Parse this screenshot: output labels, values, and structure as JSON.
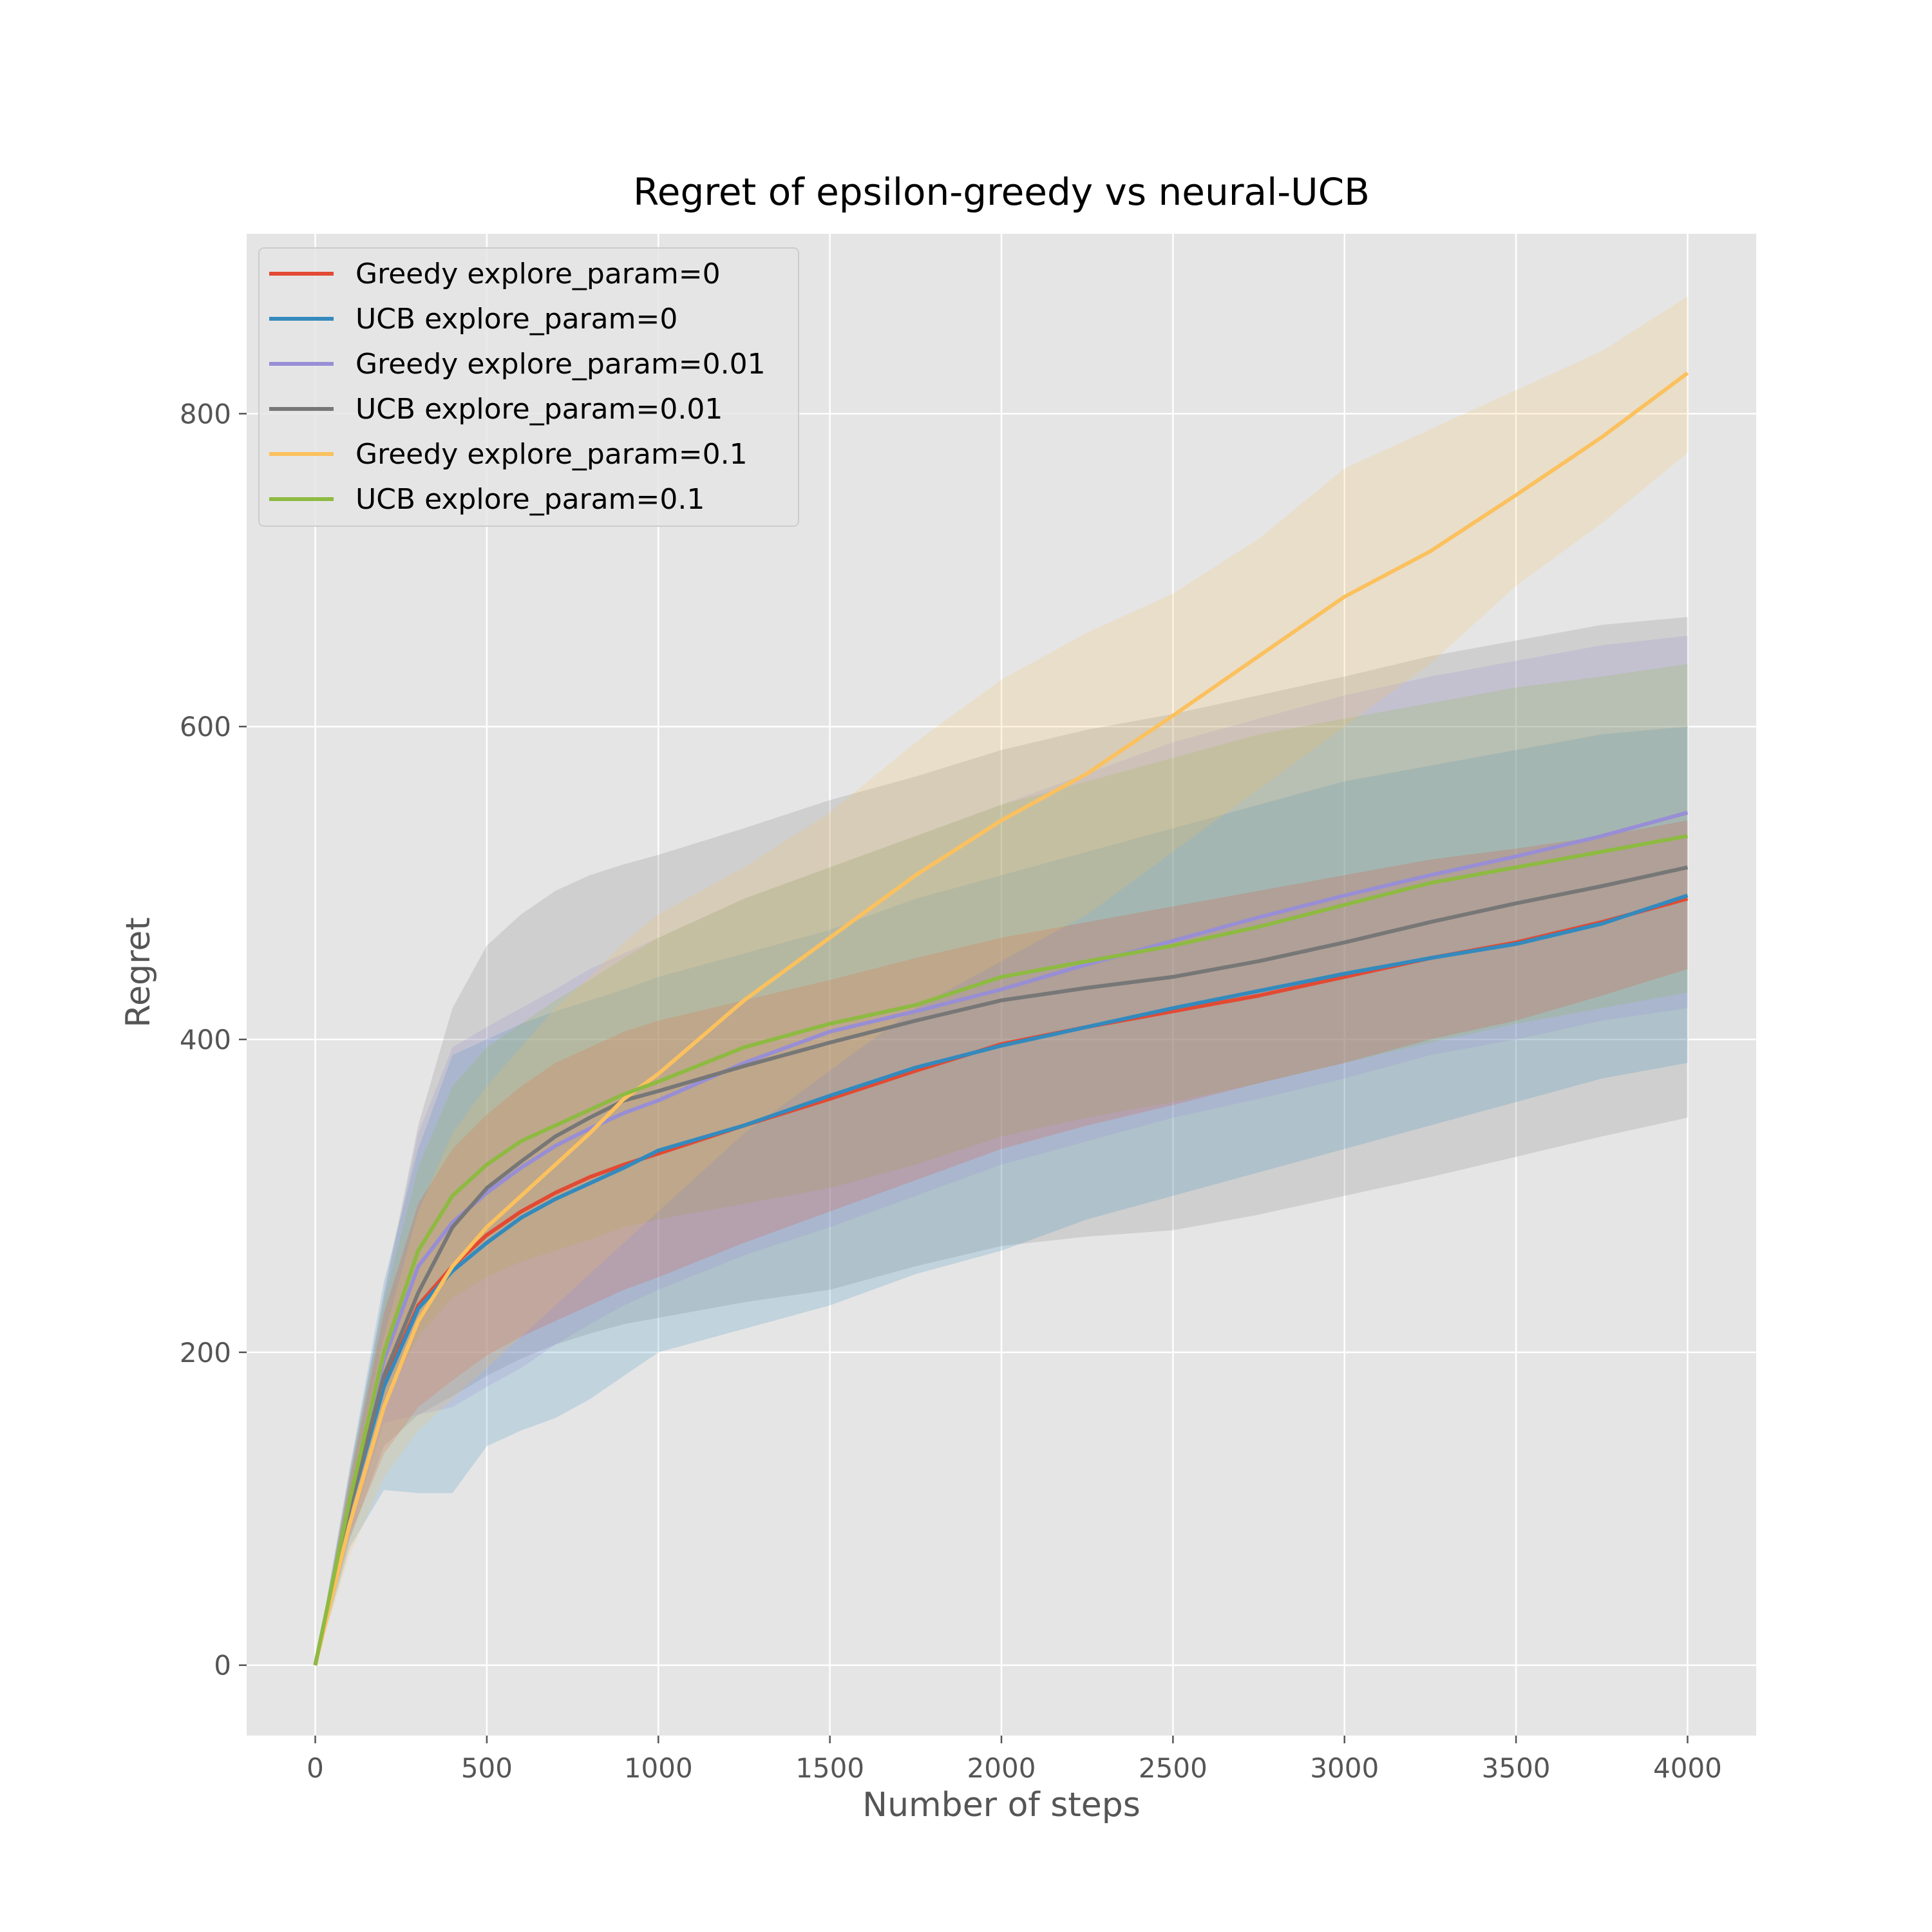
{
  "chart_data": {
    "type": "line",
    "title": "Regret of epsilon-greedy vs neural-UCB",
    "xlabel": "Number of steps",
    "ylabel": "Regret",
    "xlim": [
      -200,
      4200
    ],
    "ylim": [
      -45,
      915
    ],
    "xticks": [
      0,
      500,
      1000,
      1500,
      2000,
      2500,
      3000,
      3500,
      4000
    ],
    "yticks": [
      0,
      200,
      400,
      600,
      800
    ],
    "grid": true,
    "legend_position": "top-left",
    "x": [
      0,
      100,
      200,
      300,
      400,
      500,
      600,
      700,
      800,
      900,
      1000,
      1250,
      1500,
      1750,
      2000,
      2250,
      2500,
      2750,
      3000,
      3250,
      3500,
      3750,
      4000
    ],
    "series": [
      {
        "name": "Greedy explore_param=0",
        "color": "#E24A33",
        "mean": [
          0,
          100,
          180,
          230,
          255,
          275,
          290,
          302,
          312,
          320,
          327,
          345,
          362,
          380,
          397,
          408,
          418,
          428,
          440,
          452,
          462,
          475,
          490
        ],
        "lower": [
          0,
          82,
          135,
          165,
          182,
          198,
          210,
          220,
          230,
          240,
          248,
          270,
          290,
          310,
          330,
          345,
          358,
          372,
          385,
          400,
          412,
          428,
          445
        ],
        "upper": [
          0,
          118,
          225,
          295,
          330,
          352,
          370,
          385,
          395,
          405,
          412,
          425,
          438,
          452,
          465,
          475,
          485,
          495,
          505,
          515,
          522,
          530,
          540
        ]
      },
      {
        "name": "UCB explore_param=0",
        "color": "#348ABD",
        "mean": [
          0,
          100,
          178,
          228,
          252,
          270,
          286,
          298,
          308,
          318,
          329,
          345,
          364,
          382,
          396,
          408,
          420,
          431,
          442,
          452,
          461,
          474,
          492
        ],
        "lower": [
          0,
          75,
          112,
          110,
          110,
          140,
          150,
          158,
          170,
          185,
          200,
          215,
          230,
          250,
          265,
          285,
          300,
          315,
          330,
          345,
          360,
          375,
          385
        ],
        "upper": [
          0,
          125,
          245,
          330,
          390,
          400,
          410,
          418,
          425,
          432,
          440,
          455,
          470,
          490,
          505,
          520,
          535,
          550,
          565,
          575,
          585,
          595,
          600
        ]
      },
      {
        "name": "Greedy explore_param=0.01",
        "color": "#988ED5",
        "mean": [
          0,
          105,
          195,
          255,
          283,
          302,
          318,
          332,
          343,
          353,
          361,
          385,
          405,
          418,
          432,
          448,
          463,
          478,
          492,
          505,
          517,
          530,
          545
        ],
        "lower": [
          0,
          85,
          155,
          160,
          165,
          178,
          190,
          205,
          218,
          230,
          240,
          262,
          280,
          300,
          320,
          335,
          350,
          362,
          375,
          390,
          400,
          412,
          420
        ],
        "upper": [
          0,
          125,
          235,
          340,
          395,
          408,
          420,
          432,
          445,
          455,
          465,
          490,
          510,
          530,
          550,
          570,
          590,
          605,
          620,
          632,
          642,
          652,
          658
        ]
      },
      {
        "name": "UCB explore_param=0.01",
        "color": "#777777",
        "mean": [
          0,
          100,
          185,
          238,
          280,
          305,
          322,
          338,
          350,
          361,
          367,
          383,
          398,
          412,
          425,
          433,
          440,
          450,
          462,
          475,
          487,
          498,
          510
        ],
        "lower": [
          0,
          80,
          140,
          160,
          172,
          185,
          196,
          205,
          212,
          218,
          222,
          232,
          240,
          255,
          268,
          274,
          278,
          288,
          300,
          312,
          325,
          338,
          350
        ],
        "upper": [
          0,
          120,
          238,
          345,
          420,
          460,
          480,
          495,
          505,
          512,
          518,
          535,
          553,
          568,
          585,
          598,
          608,
          620,
          632,
          645,
          655,
          665,
          670
        ]
      },
      {
        "name": "Greedy explore_param=0.1",
        "color": "#FBC15E",
        "mean": [
          0,
          90,
          165,
          220,
          255,
          280,
          300,
          320,
          340,
          362,
          378,
          425,
          465,
          505,
          540,
          570,
          607,
          645,
          683,
          712,
          748,
          785,
          826
        ],
        "lower": [
          0,
          70,
          120,
          150,
          170,
          190,
          210,
          230,
          250,
          270,
          290,
          340,
          380,
          420,
          450,
          480,
          520,
          560,
          600,
          640,
          690,
          730,
          775
        ],
        "upper": [
          0,
          110,
          210,
          290,
          340,
          370,
          395,
          420,
          440,
          462,
          480,
          510,
          545,
          590,
          630,
          660,
          685,
          720,
          765,
          790,
          815,
          840,
          875
        ]
      },
      {
        "name": "UCB explore_param=0.1",
        "color": "#8EBA42",
        "mean": [
          0,
          105,
          200,
          265,
          300,
          320,
          335,
          345,
          355,
          365,
          373,
          395,
          410,
          422,
          440,
          450,
          460,
          472,
          486,
          500,
          510,
          520,
          530
        ],
        "lower": [
          0,
          88,
          168,
          210,
          235,
          248,
          258,
          265,
          272,
          280,
          285,
          295,
          305,
          320,
          338,
          350,
          360,
          372,
          385,
          398,
          410,
          420,
          430
        ],
        "upper": [
          0,
          122,
          232,
          318,
          370,
          395,
          410,
          425,
          438,
          452,
          465,
          490,
          510,
          530,
          550,
          565,
          580,
          595,
          605,
          615,
          625,
          632,
          640
        ]
      }
    ]
  }
}
